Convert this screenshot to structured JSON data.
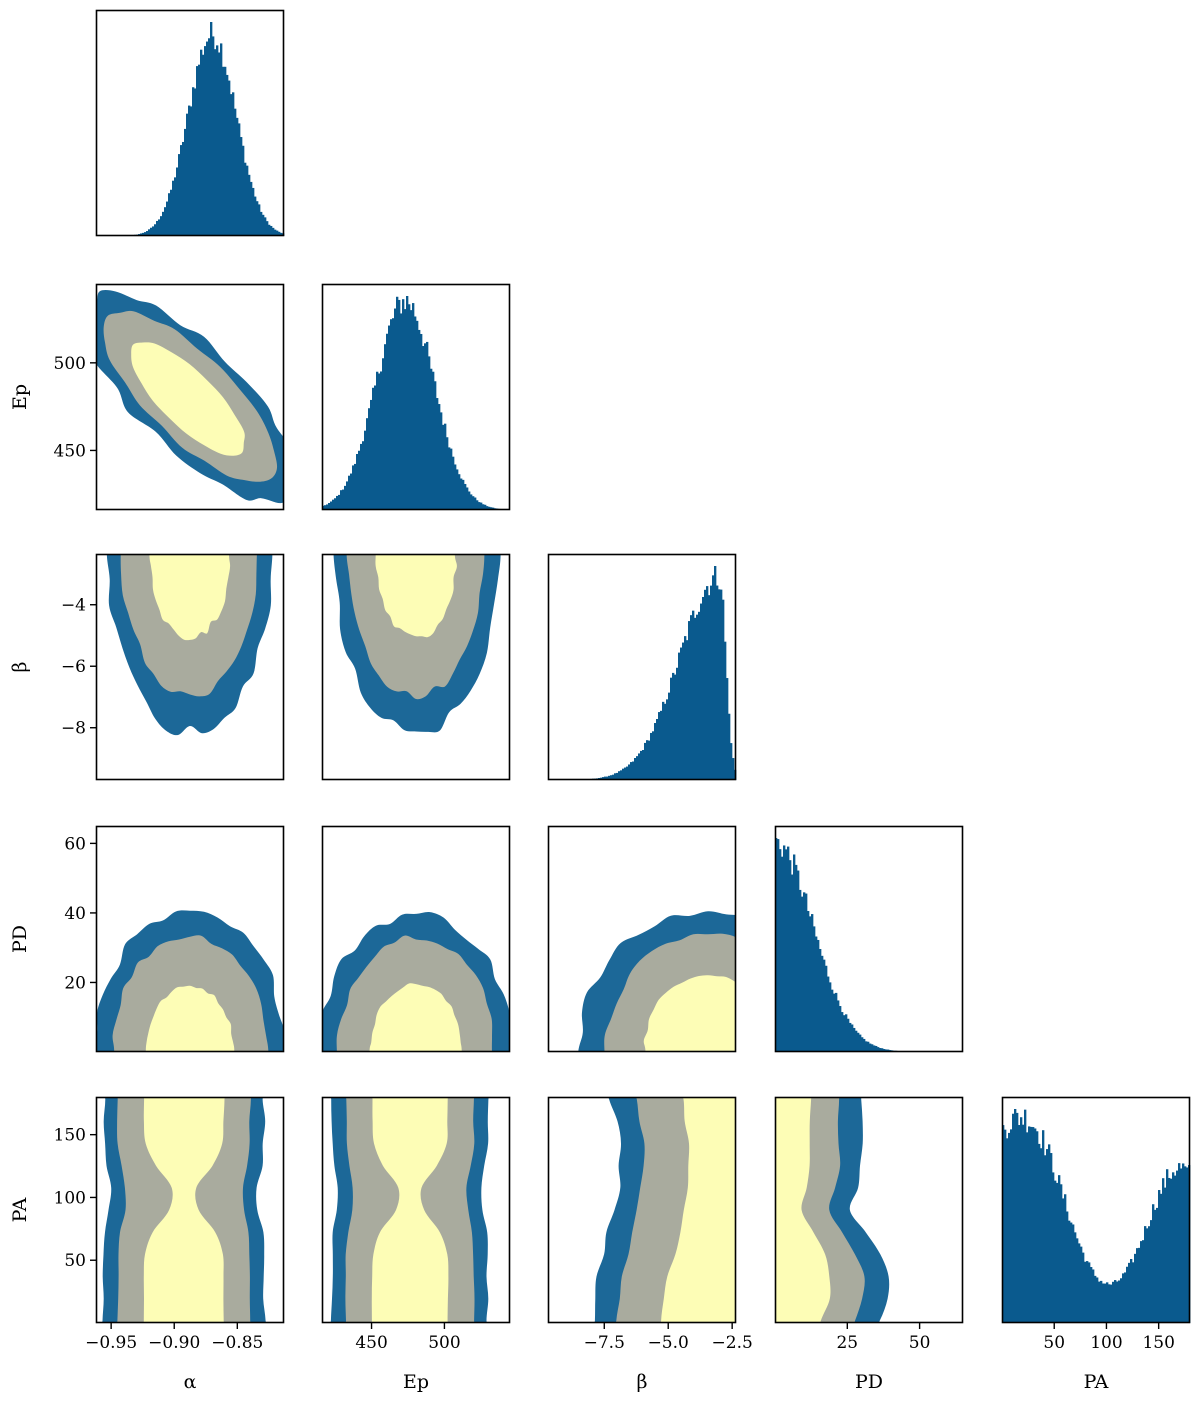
{
  "colors": {
    "histogram": "#0a5a8e",
    "contour_outer": "#1c6898",
    "contour_middle": "#a9ab9e",
    "contour_inner": "#fdfdb6",
    "frame": "#000000"
  },
  "chart_data": {
    "type": "corner",
    "parameters": [
      "α",
      "Ep",
      "β",
      "PD",
      "PA"
    ],
    "labels": {
      "x": [
        "α",
        "Ep",
        "β",
        "PD",
        "PA"
      ],
      "y": [
        "",
        "Ep",
        "β",
        "PD",
        "PA"
      ]
    },
    "ranges": {
      "alpha": [
        -0.962,
        -0.813
      ],
      "Ep": [
        416,
        545
      ],
      "beta": [
        -9.7,
        -2.35
      ],
      "PD": [
        0,
        65
      ],
      "PA": [
        0,
        180
      ]
    },
    "ticks": {
      "alpha": {
        "values": [
          -0.95,
          -0.9,
          -0.85
        ],
        "labels": [
          "−0.95",
          "−0.90",
          "−0.85"
        ]
      },
      "Ep": {
        "values": [
          450,
          500
        ],
        "labels": [
          "450",
          "500"
        ]
      },
      "beta_x": {
        "values": [
          -7.5,
          -5.0,
          -2.5
        ],
        "labels": [
          "−7.5",
          "−5.0",
          "−2.5"
        ]
      },
      "beta_y": {
        "values": [
          -8,
          -6,
          -4
        ],
        "labels": [
          "−8",
          "−6",
          "−4"
        ]
      },
      "PD_x": {
        "values": [
          25,
          50
        ],
        "labels": [
          "25",
          "50"
        ]
      },
      "PD_y": {
        "values": [
          20,
          40,
          60
        ],
        "labels": [
          "20",
          "40",
          "60"
        ]
      },
      "PA": {
        "values": [
          50,
          100,
          150
        ],
        "labels": [
          "50",
          "100",
          "150"
        ]
      }
    },
    "marginals": {
      "alpha": {
        "mode": -0.87,
        "sigma": 0.019,
        "peak_counts": 1.0
      },
      "Ep": {
        "mode": 473,
        "sigma": 20,
        "peak_counts": 1.0
      },
      "beta": {
        "mode": -3.0,
        "sigma_left": 1.55,
        "sigma_right": 0.25,
        "peak_counts": 1.0
      },
      "PD": {
        "mode": 0,
        "sigma": 13,
        "peak_counts": 1.0
      },
      "PA": {
        "centers": [
          35,
          170
        ],
        "sigma": 30,
        "peak_counts": 1.0
      }
    },
    "credible_regions": [
      "inner",
      "middle",
      "outer"
    ],
    "grid": false
  }
}
